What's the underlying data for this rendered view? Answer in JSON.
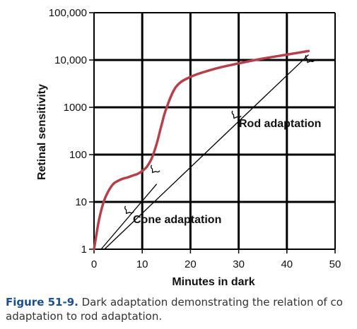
{
  "chart_data": {
    "type": "line",
    "xlabel": "Minutes in dark",
    "ylabel": "Retinal sensitivity",
    "xlim": [
      0,
      50
    ],
    "ylim": [
      1,
      100000
    ],
    "yscale": "log",
    "x_ticks": [
      "0",
      "10",
      "20",
      "30",
      "40",
      "50"
    ],
    "y_ticks": [
      "1",
      "10",
      "100",
      "1000",
      "10,000",
      "100,000"
    ],
    "grid": true,
    "series": [
      {
        "color": "#b5404b",
        "x": [
          0,
          1,
          2,
          3,
          4,
          5,
          6,
          7,
          8,
          9,
          10,
          11,
          12,
          13,
          14,
          15,
          17,
          20,
          25,
          30,
          35,
          40,
          44.5
        ],
        "y": [
          1,
          4,
          10,
          17,
          24,
          28,
          31,
          33,
          36,
          39,
          45,
          56,
          85,
          170,
          420,
          950,
          2700,
          4400,
          6500,
          8500,
          10700,
          13000,
          15500
        ]
      }
    ],
    "annotations": [
      {
        "label": "Cone adaptation",
        "x": [
          0,
          13
        ],
        "y": [
          1,
          36
        ]
      },
      {
        "label": "Rod adaptation",
        "x": [
          1,
          44.5
        ],
        "y": [
          1,
          10500
        ]
      }
    ]
  },
  "caption": {
    "lead": "Figure 51-9.",
    "line1": " Dark adaptation demonstrating the relation of co",
    "line2": "adaptation to rod adaptation."
  }
}
